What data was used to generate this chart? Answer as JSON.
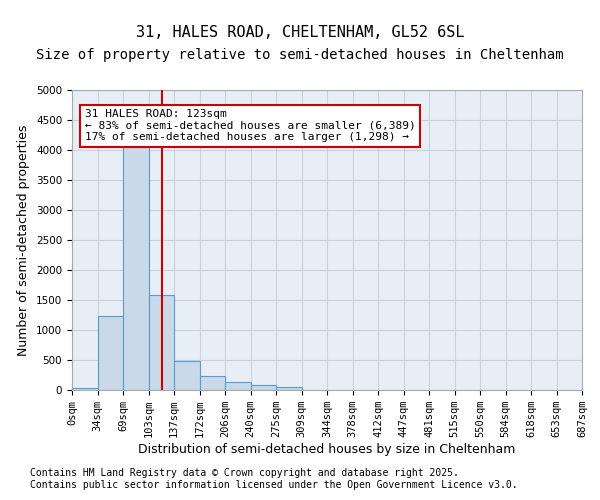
{
  "title1": "31, HALES ROAD, CHELTENHAM, GL52 6SL",
  "title2": "Size of property relative to semi-detached houses in Cheltenham",
  "xlabel": "Distribution of semi-detached houses by size in Cheltenham",
  "ylabel": "Number of semi-detached properties",
  "bin_labels": [
    "0sqm",
    "34sqm",
    "69sqm",
    "103sqm",
    "137sqm",
    "172sqm",
    "206sqm",
    "240sqm",
    "275sqm",
    "309sqm",
    "344sqm",
    "378sqm",
    "412sqm",
    "447sqm",
    "481sqm",
    "515sqm",
    "550sqm",
    "584sqm",
    "618sqm",
    "653sqm",
    "687sqm"
  ],
  "bar_values": [
    30,
    1240,
    4050,
    1590,
    490,
    240,
    130,
    90,
    50,
    0,
    0,
    0,
    0,
    0,
    0,
    0,
    0,
    0,
    0,
    0
  ],
  "bar_color": "#c9d9e8",
  "bar_edge_color": "#5b9bd5",
  "grid_color": "#c8d3e0",
  "background_color": "#e8eef5",
  "vline_x": 3.51,
  "vline_color": "#cc0000",
  "annotation_title": "31 HALES ROAD: 123sqm",
  "annotation_line1": "← 83% of semi-detached houses are smaller (6,389)",
  "annotation_line2": "17% of semi-detached houses are larger (1,298) →",
  "annotation_box_color": "#cc0000",
  "ylim": [
    0,
    5000
  ],
  "yticks": [
    0,
    500,
    1000,
    1500,
    2000,
    2500,
    3000,
    3500,
    4000,
    4500,
    5000
  ],
  "footnote1": "Contains HM Land Registry data © Crown copyright and database right 2025.",
  "footnote2": "Contains public sector information licensed under the Open Government Licence v3.0.",
  "title1_fontsize": 11,
  "title2_fontsize": 10,
  "xlabel_fontsize": 9,
  "ylabel_fontsize": 9,
  "tick_fontsize": 7.5,
  "annotation_fontsize": 8,
  "footnote_fontsize": 7
}
